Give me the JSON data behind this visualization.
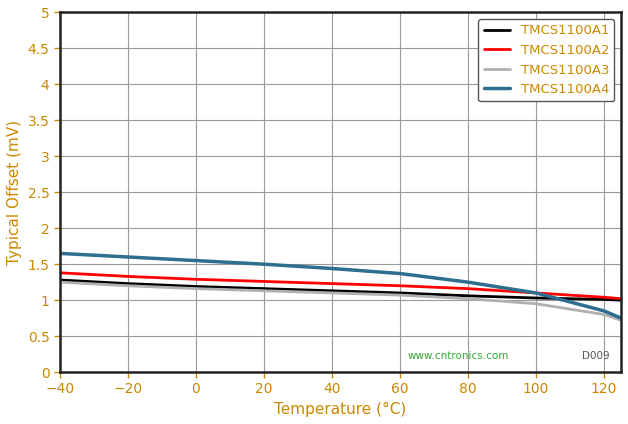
{
  "title": "",
  "xlabel": "Temperature (°C)",
  "ylabel": "Typical Offset (mV)",
  "xlim": [
    -40,
    125
  ],
  "ylim": [
    0,
    5
  ],
  "xticks": [
    -40,
    -20,
    0,
    20,
    40,
    60,
    80,
    100,
    120
  ],
  "yticks": [
    0,
    0.5,
    1,
    1.5,
    2,
    2.5,
    3,
    3.5,
    4,
    4.5,
    5
  ],
  "watermark": "www.cntronics.com",
  "watermark_color": "#33aa33",
  "label_color": "#cc8800",
  "tick_color": "#cc8800",
  "series": [
    {
      "label": "TMCS1100A1",
      "color": "#000000",
      "linewidth": 2.0,
      "x": [
        -40,
        -20,
        0,
        20,
        40,
        60,
        80,
        100,
        120,
        125
      ],
      "y": [
        1.28,
        1.23,
        1.19,
        1.16,
        1.13,
        1.1,
        1.06,
        1.03,
        1.01,
        1.0
      ]
    },
    {
      "label": "TMCS1100A2",
      "color": "#ff0000",
      "linewidth": 2.0,
      "x": [
        -40,
        -20,
        0,
        20,
        40,
        60,
        80,
        100,
        120,
        125
      ],
      "y": [
        1.38,
        1.33,
        1.29,
        1.26,
        1.23,
        1.2,
        1.16,
        1.1,
        1.04,
        1.02
      ]
    },
    {
      "label": "TMCS1100A3",
      "color": "#b0b0b0",
      "linewidth": 2.0,
      "x": [
        -40,
        -20,
        0,
        20,
        40,
        60,
        80,
        100,
        120,
        125
      ],
      "y": [
        1.25,
        1.2,
        1.16,
        1.13,
        1.1,
        1.07,
        1.02,
        0.95,
        0.8,
        0.72
      ]
    },
    {
      "label": "TMCS1100A4",
      "color": "#2e6e8e",
      "linewidth": 2.5,
      "x": [
        -40,
        -20,
        0,
        20,
        40,
        60,
        80,
        100,
        120,
        125
      ],
      "y": [
        1.65,
        1.6,
        1.55,
        1.5,
        1.44,
        1.37,
        1.25,
        1.1,
        0.85,
        0.75
      ]
    }
  ],
  "legend_loc": "upper right",
  "grid_color": "#999999",
  "spine_color": "#222222",
  "background_color": "#ffffff",
  "figure_bg": "#ffffff",
  "legend_text_color": "#cc8800",
  "xlabel_fontsize": 11,
  "ylabel_fontsize": 11,
  "tick_fontsize": 10
}
